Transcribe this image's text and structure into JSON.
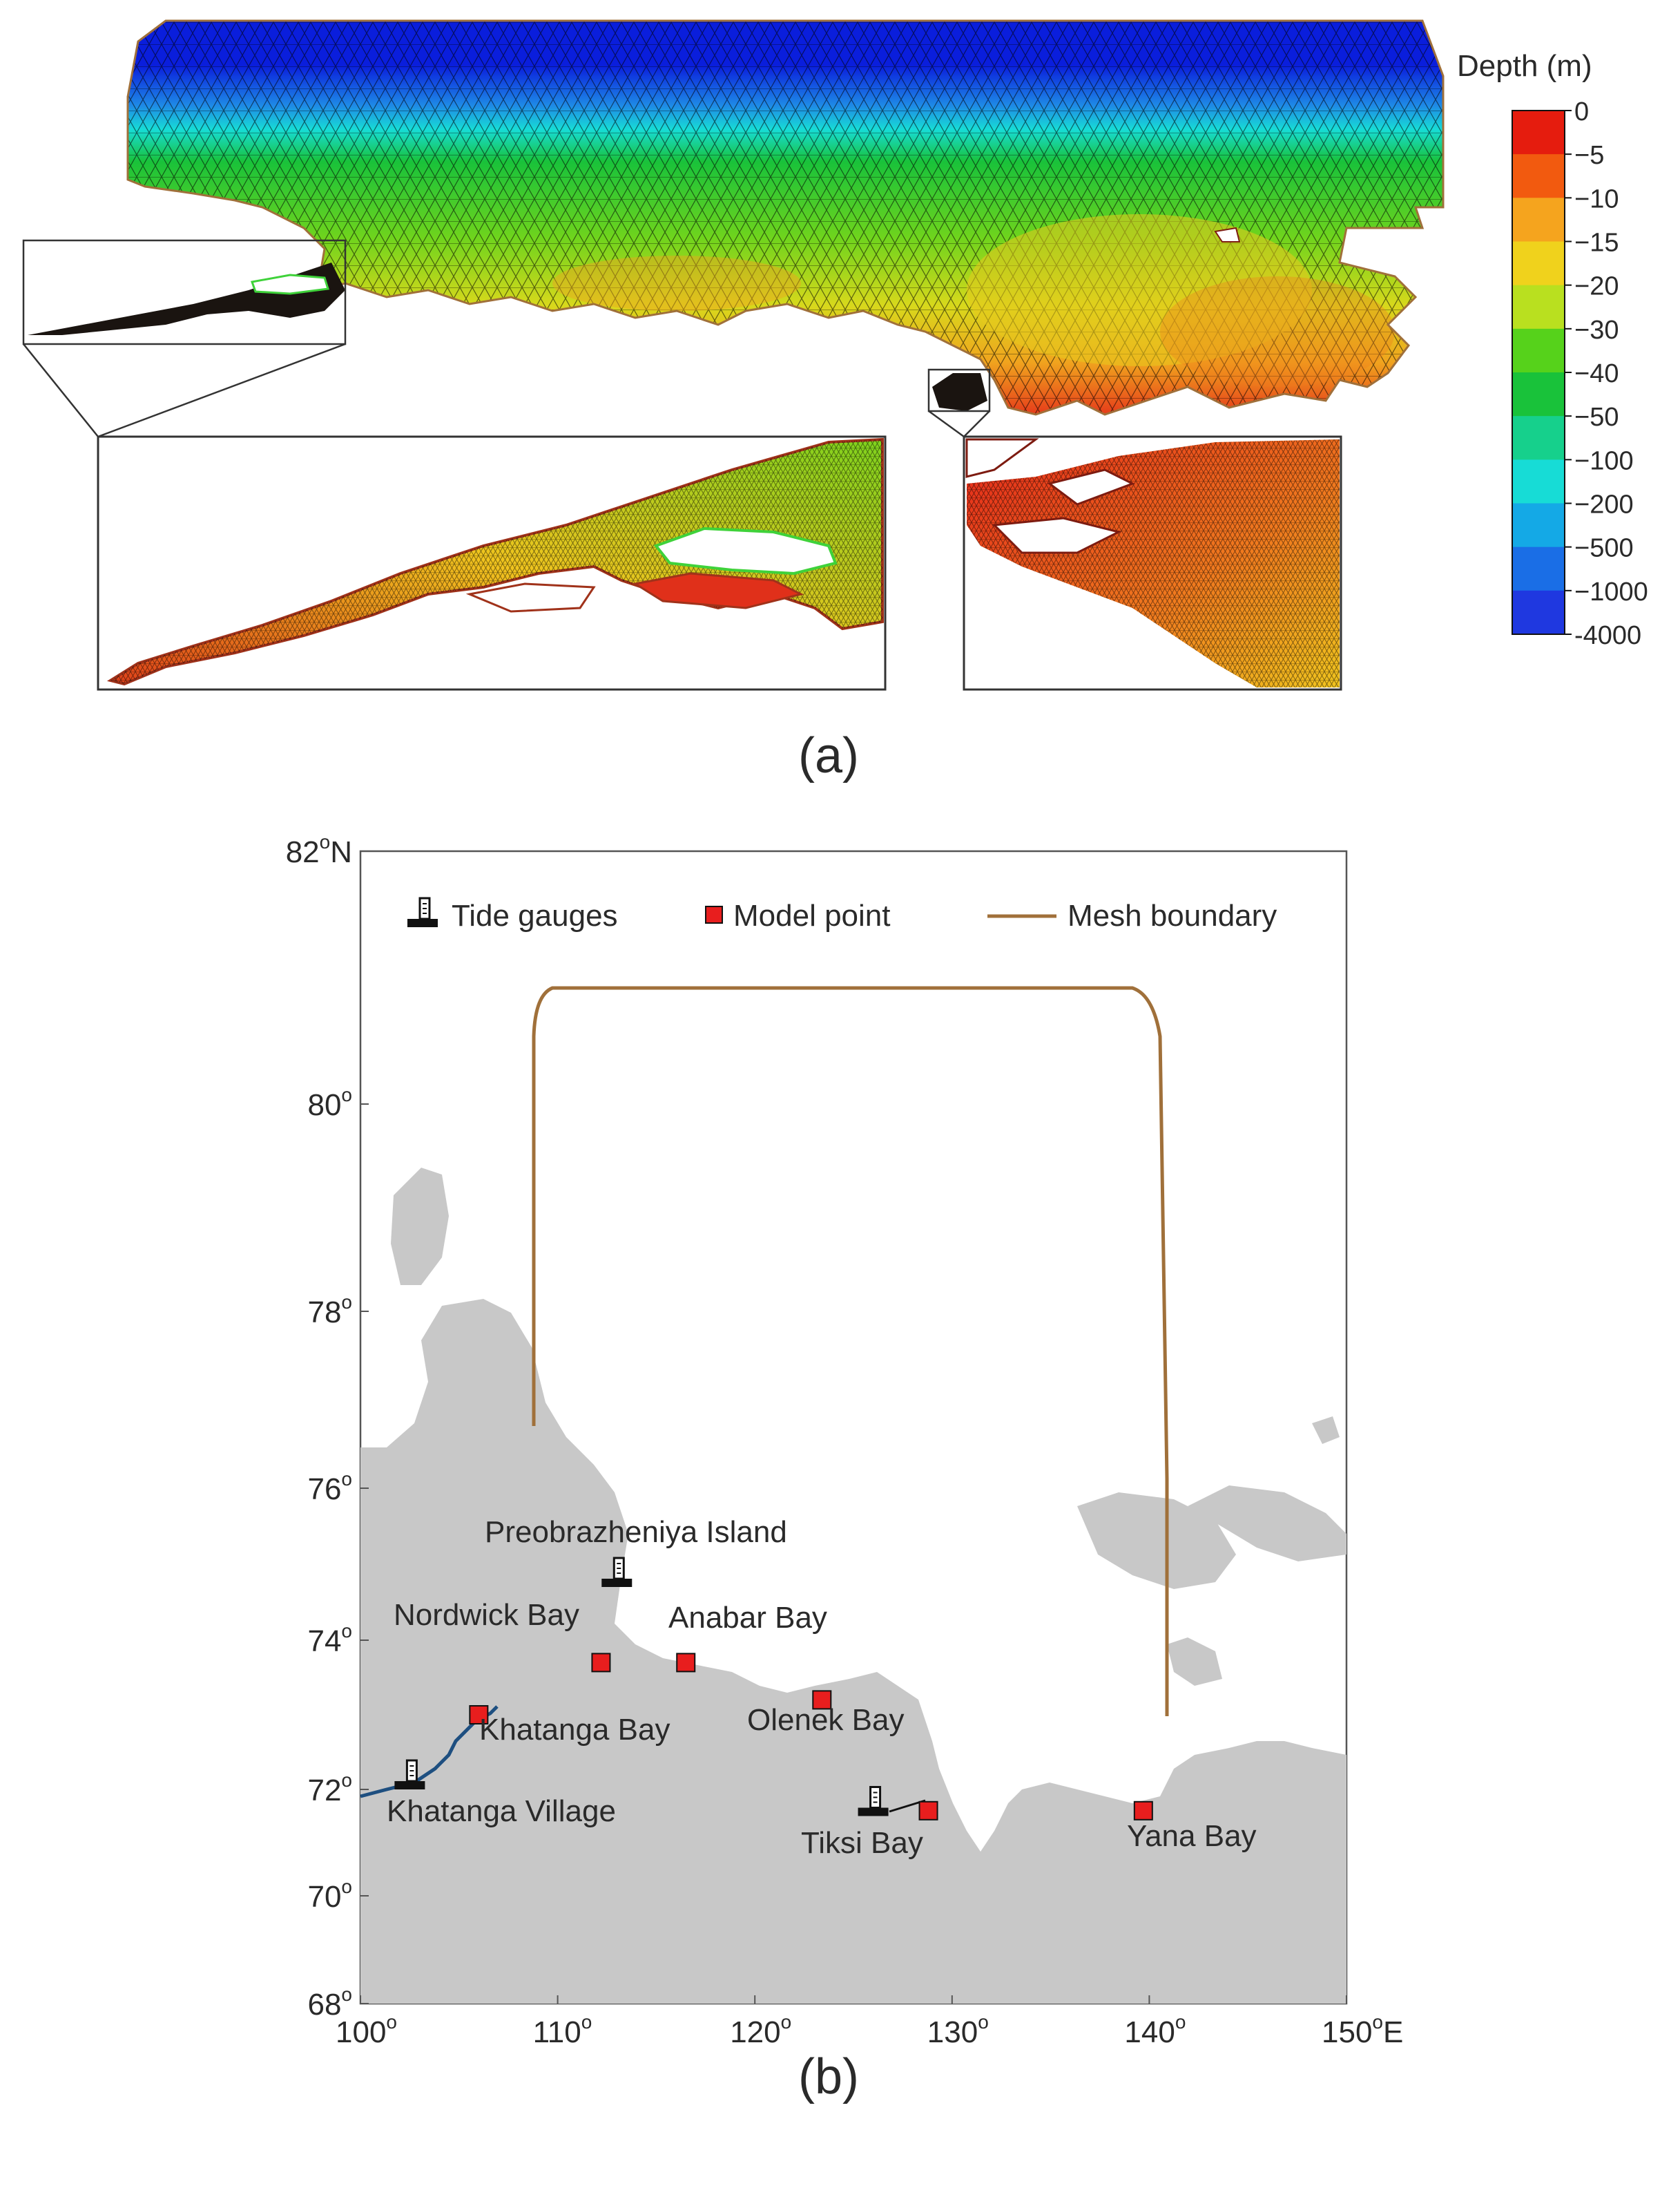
{
  "panel_a": {
    "label": "(a)",
    "colorbar": {
      "title": "Depth (m)",
      "levels": [
        "0",
        "−5",
        "−10",
        "−15",
        "−20",
        "−30",
        "−40",
        "−50",
        "−100",
        "−200",
        "−500",
        "−1000",
        "-4000"
      ],
      "colors": [
        "#e51c0e",
        "#f25a0f",
        "#f5a41e",
        "#f0d21c",
        "#b9e01f",
        "#56d21b",
        "#19c23a",
        "#16d08c",
        "#17dcd6",
        "#14a9e6",
        "#1a6ee6",
        "#1f38e0"
      ]
    }
  },
  "panel_b": {
    "label": "(b)",
    "legend": {
      "tide_gauges": "Tide gauges",
      "model_point": "Model point",
      "mesh_boundary": "Mesh boundary"
    },
    "x_ticks": [
      "100",
      "110",
      "120",
      "130",
      "140",
      "150"
    ],
    "x_unit": "E",
    "y_ticks": [
      "68",
      "70",
      "72",
      "74",
      "76",
      "78",
      "80",
      "82"
    ],
    "y_unit": "N",
    "places": {
      "preobrazheniya": "Preobrazheniya Island",
      "nordwick": "Nordwick Bay",
      "anabar": "Anabar Bay",
      "khatanga_bay": "Khatanga Bay",
      "olenek": "Olenek Bay",
      "khatanga_village": "Khatanga Village",
      "tiksi": "Tiksi Bay",
      "yana": "Yana Bay"
    },
    "model_points": [
      {
        "name": "Khatanga Bay",
        "lon": 106.0,
        "lat": 73.0
      },
      {
        "name": "Nordwick Bay",
        "lon": 112.2,
        "lat": 73.7
      },
      {
        "name": "Anabar Bay",
        "lon": 116.5,
        "lat": 73.7
      },
      {
        "name": "Olenek Bay",
        "lon": 123.4,
        "lat": 73.2
      },
      {
        "name": "Tiksi Bay",
        "lon": 128.8,
        "lat": 71.6
      },
      {
        "name": "Yana Bay",
        "lon": 139.7,
        "lat": 71.6
      }
    ],
    "tide_gauges": [
      {
        "name": "Preobrazheniya Island",
        "lon": 113.0,
        "lat": 74.7
      },
      {
        "name": "Khatanga Village",
        "lon": 102.5,
        "lat": 72.0
      },
      {
        "name": "Tiksi Bay",
        "lon": 126.0,
        "lat": 71.5
      }
    ],
    "colors": {
      "land": "#c8c8c8",
      "mesh_boundary": "#a0703a",
      "model_point": "#e81e1e",
      "river": "#1e4f80"
    }
  }
}
